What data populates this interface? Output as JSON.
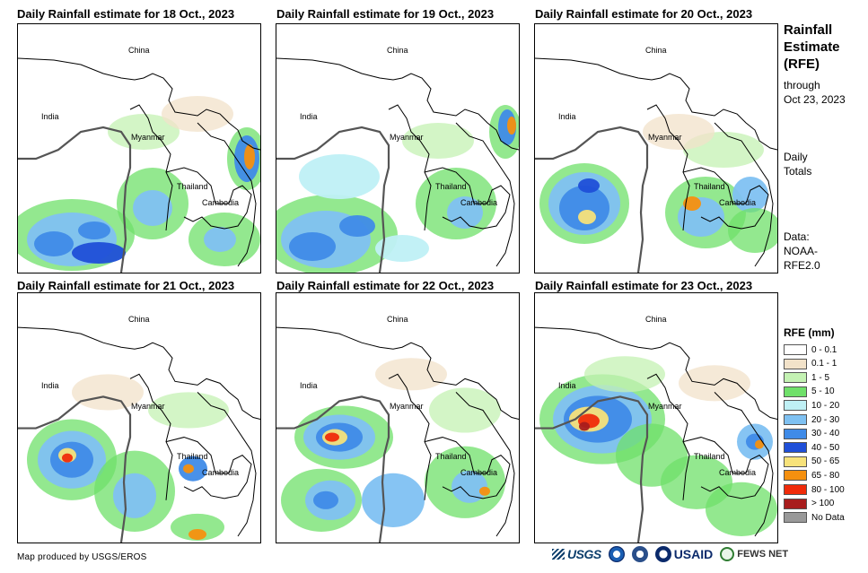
{
  "panels": [
    {
      "title": "Daily Rainfall estimate for 18 Oct., 2023",
      "china": "China",
      "india": "India",
      "myanmar": "Myanmar",
      "thailand": "Thailand",
      "cambodia": "Cambodia"
    },
    {
      "title": "Daily Rainfall estimate for 19 Oct., 2023",
      "china": "China",
      "india": "India",
      "myanmar": "Myanmar",
      "thailand": "Thailand",
      "cambodia": "Cambodia"
    },
    {
      "title": "Daily Rainfall estimate for 20 Oct., 2023",
      "china": "China",
      "india": "India",
      "myanmar": "Myanmar",
      "thailand": "Thailand",
      "cambodia": "Cambodia"
    },
    {
      "title": "Daily Rainfall estimate for 21 Oct., 2023",
      "china": "China",
      "india": "India",
      "myanmar": "Myanmar",
      "thailand": "Thailand",
      "cambodia": "Cambodia"
    },
    {
      "title": "Daily Rainfall estimate for 22 Oct., 2023",
      "china": "China",
      "india": "India",
      "myanmar": "Myanmar",
      "thailand": "Thailand",
      "cambodia": "Cambodia"
    },
    {
      "title": "Daily Rainfall estimate for 23 Oct., 2023",
      "china": "China",
      "india": "India",
      "myanmar": "Myanmar",
      "thailand": "Thailand",
      "cambodia": "Cambodia"
    }
  ],
  "sidebar": {
    "title_line1": "Rainfall",
    "title_line2": "Estimate",
    "title_line3": "(RFE)",
    "through": "through",
    "through_date": "Oct 23, 2023",
    "daily1": "Daily",
    "daily2": "Totals",
    "data1": "Data:",
    "data2": "NOAA-",
    "data3": "RFE2.0"
  },
  "legend": {
    "title": "RFE (mm)",
    "items": [
      {
        "label": "0 - 0.1",
        "color": "#ffffff"
      },
      {
        "label": "0.1 - 1",
        "color": "#f2e2c9"
      },
      {
        "label": "1 - 5",
        "color": "#c4f2b3"
      },
      {
        "label": "5 - 10",
        "color": "#6fe06a"
      },
      {
        "label": "10 - 20",
        "color": "#bff0f5"
      },
      {
        "label": "20 - 30",
        "color": "#7fc1f2"
      },
      {
        "label": "30 - 40",
        "color": "#3f8be8"
      },
      {
        "label": "40 - 50",
        "color": "#1f4fd8"
      },
      {
        "label": "50 - 65",
        "color": "#f7e27a"
      },
      {
        "label": "65 - 80",
        "color": "#f5900f"
      },
      {
        "label": "80 - 100",
        "color": "#f02b0a"
      },
      {
        "label": "> 100",
        "color": "#a81d1d"
      },
      {
        "label": "No Data",
        "color": "#999999"
      }
    ]
  },
  "footer": {
    "credit": "Map produced by USGS/EROS",
    "logo_usgs": "USGS",
    "logo_usaid": "USAID",
    "logo_fews": "FEWS NET"
  }
}
